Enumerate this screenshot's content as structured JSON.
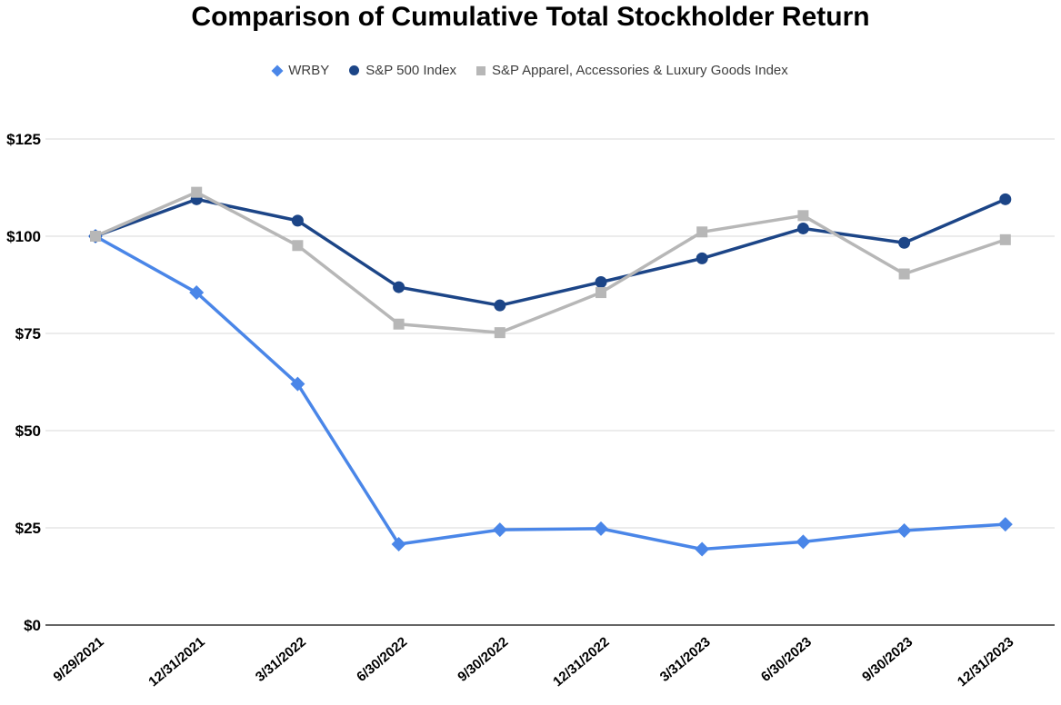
{
  "chart_data": {
    "type": "line",
    "title": "Comparison of Cumulative Total Stockholder Return",
    "categories": [
      "9/29/2021",
      "12/31/2021",
      "3/31/2022",
      "6/30/2022",
      "9/30/2022",
      "12/31/2022",
      "3/31/2023",
      "6/30/2023",
      "9/30/2023",
      "12/31/2023"
    ],
    "series": [
      {
        "name": "WRBY",
        "marker": "diamond",
        "color": "#4a86e8",
        "values": [
          100,
          85.5,
          62.0,
          20.8,
          24.5,
          24.8,
          19.5,
          21.4,
          24.3,
          25.9
        ]
      },
      {
        "name": "S&P 500 Index",
        "marker": "circle",
        "color": "#1c4587",
        "values": [
          100,
          109.5,
          104.0,
          86.9,
          82.2,
          88.2,
          94.3,
          102.0,
          98.3,
          109.5
        ]
      },
      {
        "name": "S&P Apparel, Accessories & Luxury Goods Index",
        "marker": "square",
        "color": "#b7b7b7",
        "values": [
          100,
          111.3,
          97.6,
          77.4,
          75.2,
          85.5,
          101.1,
          105.3,
          90.3,
          99.1
        ]
      }
    ],
    "xlabel": "",
    "ylabel": "",
    "ylim": [
      0,
      125
    ],
    "yticks": [
      0,
      25,
      50,
      75,
      100,
      125
    ],
    "ytick_labels": [
      "$0",
      "$25",
      "$50",
      "$75",
      "$100",
      "$125"
    ],
    "grid": true,
    "legend_position": "top",
    "gridline_color": "#d9d9d9",
    "axis_line_color": "#333333",
    "background_color": "#ffffff"
  }
}
